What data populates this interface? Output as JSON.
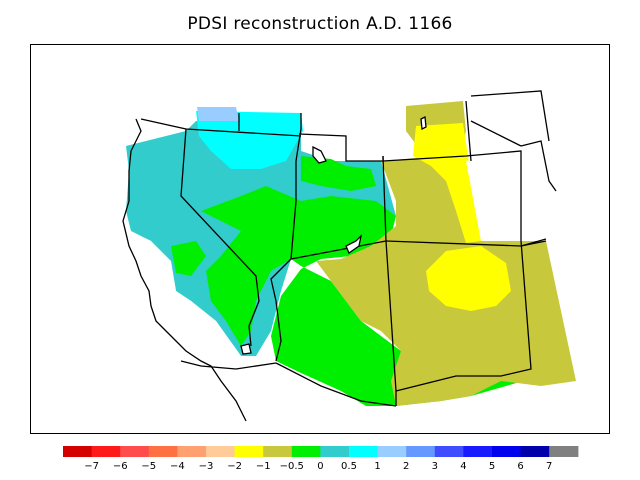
{
  "title": "PDSI reconstruction A.D. 1166",
  "colorbar": {
    "colors": [
      "#d40000",
      "#ff1a1a",
      "#ff4d4d",
      "#ff7043",
      "#ffa070",
      "#ffcc99",
      "#ffff00",
      "#c8c83c",
      "#00ee00",
      "#33cccc",
      "#00ffff",
      "#99ccff",
      "#6699ff",
      "#3f4dff",
      "#1a1aff",
      "#0000ee",
      "#0000aa",
      "#808080"
    ],
    "labels": [
      "−7",
      "−6",
      "−5",
      "−4",
      "−3",
      "−2",
      "−1",
      "−0.5",
      "0",
      "0.5",
      "1",
      "2",
      "3",
      "4",
      "5",
      "6",
      "7"
    ]
  },
  "map_colors": {
    "moderately_wet": "#33cccc",
    "wet": "#00ffff",
    "very_wet": "#99ccff",
    "near_normal": "#00ee00",
    "slightly_dry": "#c8c83c",
    "dry": "#ffff00"
  }
}
